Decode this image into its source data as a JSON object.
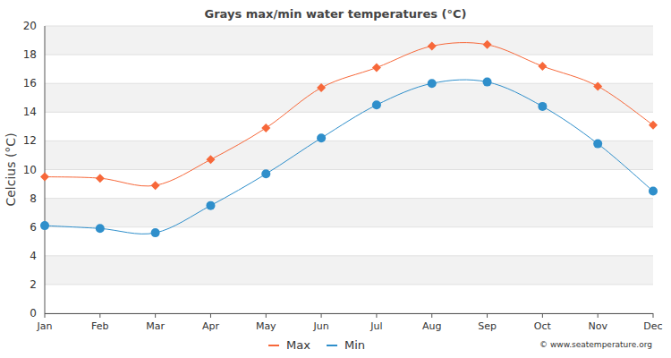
{
  "chart_data": {
    "type": "line",
    "title": "Grays max/min water temperatures (°C)",
    "y_label": "Celcius (°C)",
    "annotations": [
      "© www.seatemperature.org"
    ],
    "categories": [
      "Jan",
      "Feb",
      "Mar",
      "Apr",
      "May",
      "Jun",
      "Jul",
      "Aug",
      "Sep",
      "Oct",
      "Nov",
      "Dec"
    ],
    "series": [
      {
        "name": "Max",
        "color": "#f7683a",
        "marker": "diamond",
        "line_style": "smooth",
        "values": [
          9.5,
          9.4,
          8.9,
          10.7,
          12.9,
          15.7,
          17.1,
          18.6,
          18.7,
          17.2,
          15.8,
          13.1
        ]
      },
      {
        "name": "Min",
        "color": "#2f8fcb",
        "marker": "circle",
        "line_style": "smooth",
        "values": [
          6.1,
          5.9,
          5.6,
          7.5,
          9.7,
          12.2,
          14.5,
          16.0,
          16.1,
          14.4,
          11.8,
          8.5
        ]
      }
    ],
    "ylim": [
      0,
      20
    ],
    "yticks": [
      0,
      2,
      4,
      6,
      8,
      10,
      12,
      14,
      16,
      18,
      20
    ],
    "grid": true,
    "legend": "bottom"
  }
}
